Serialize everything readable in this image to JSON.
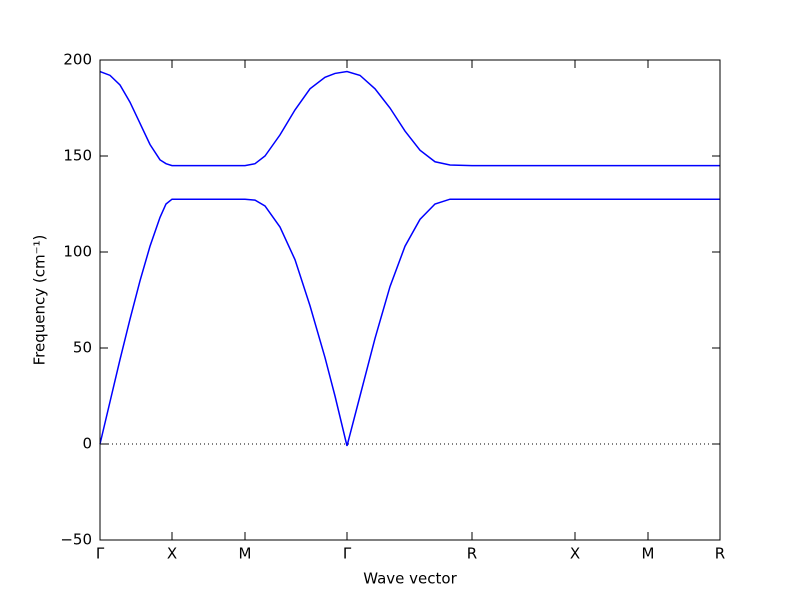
{
  "chart_data": {
    "type": "line",
    "x_label": "Wave vector",
    "y_label": "Frequency (cm⁻¹)",
    "x": [
      0,
      10,
      20,
      30,
      40,
      50,
      60,
      66,
      72,
      145,
      155,
      165,
      180,
      195,
      210,
      225,
      235,
      247,
      260,
      275,
      290,
      305,
      320,
      335,
      350,
      372,
      475,
      548,
      620
    ],
    "series": [
      {
        "color": "#0000ff",
        "values": [
          194,
          192,
          187,
          178,
          167,
          156,
          148,
          146,
          145,
          145,
          146,
          150,
          161,
          174,
          185,
          191,
          193,
          194,
          192,
          185,
          175,
          163,
          153,
          147,
          145.3,
          145,
          145,
          145,
          145
        ]
      },
      {
        "color": "#0000ff",
        "values": [
          0,
          22,
          44,
          65,
          85,
          103,
          118,
          125,
          127.5,
          127.5,
          127,
          124,
          113,
          96,
          72,
          45,
          25,
          -1,
          25,
          55,
          82,
          103,
          117,
          125,
          127.5,
          127.5,
          127.5,
          127.5,
          127.5
        ]
      }
    ],
    "xlim": [
      0,
      620
    ],
    "xticks": [
      {
        "value": 0,
        "label": "Γ"
      },
      {
        "value": 72,
        "label": "X"
      },
      {
        "value": 145,
        "label": "M"
      },
      {
        "value": 247,
        "label": "Γ"
      },
      {
        "value": 372,
        "label": "R"
      },
      {
        "value": 475,
        "label": "X"
      },
      {
        "value": 548,
        "label": "M"
      },
      {
        "value": 620,
        "label": "R"
      }
    ],
    "ylim": [
      -50,
      200
    ],
    "yticks": [
      {
        "value": -50,
        "label": "−50"
      },
      0,
      50,
      100,
      150,
      200
    ],
    "zero_line": true
  }
}
